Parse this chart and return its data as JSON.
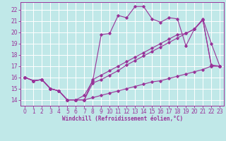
{
  "xlabel": "Windchill (Refroidissement éolien,°C)",
  "background_color": "#c0e8e8",
  "grid_color": "#ffffff",
  "line_color": "#993399",
  "xlim": [
    -0.5,
    23.5
  ],
  "ylim": [
    13.5,
    22.7
  ],
  "yticks": [
    14,
    15,
    16,
    17,
    18,
    19,
    20,
    21,
    22
  ],
  "xticks": [
    0,
    1,
    2,
    3,
    4,
    5,
    6,
    7,
    8,
    9,
    10,
    11,
    12,
    13,
    14,
    15,
    16,
    17,
    18,
    19,
    20,
    21,
    22,
    23
  ],
  "s1": [
    16.0,
    15.7,
    15.8,
    15.0,
    14.8,
    14.0,
    14.0,
    14.0,
    14.2,
    14.4,
    14.6,
    14.8,
    15.0,
    15.2,
    15.4,
    15.6,
    15.7,
    15.9,
    16.1,
    16.3,
    16.5,
    16.7,
    17.0,
    17.0
  ],
  "s2": [
    16.0,
    15.7,
    15.8,
    15.0,
    14.8,
    14.0,
    14.0,
    14.0,
    15.8,
    16.2,
    16.6,
    17.0,
    17.4,
    17.8,
    18.2,
    18.6,
    19.0,
    19.4,
    19.8,
    19.9,
    20.3,
    21.1,
    17.0,
    17.0
  ],
  "s3": [
    16.0,
    15.7,
    15.8,
    15.0,
    14.8,
    14.0,
    14.0,
    14.4,
    15.7,
    19.8,
    19.9,
    21.5,
    21.3,
    22.3,
    22.3,
    21.2,
    20.9,
    21.3,
    21.2,
    18.8,
    20.3,
    21.2,
    19.0,
    17.0
  ],
  "s4": [
    16.0,
    15.7,
    15.8,
    15.0,
    14.8,
    14.0,
    14.0,
    14.0,
    15.5,
    15.8,
    16.2,
    16.6,
    17.1,
    17.5,
    17.9,
    18.3,
    18.7,
    19.1,
    19.5,
    19.9,
    20.3,
    21.1,
    17.1,
    17.0
  ],
  "tick_fontsize": 5.5,
  "xlabel_fontsize": 5.5
}
